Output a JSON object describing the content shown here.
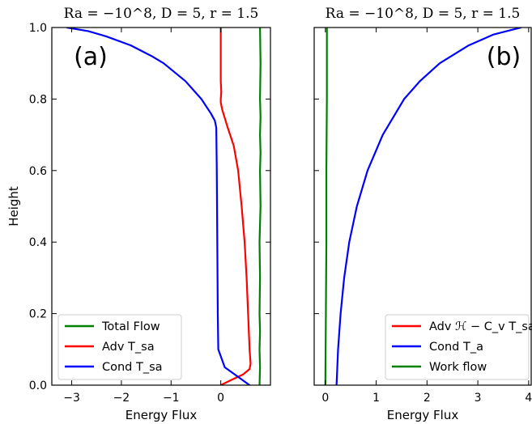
{
  "chart_data": [
    {
      "type": "line",
      "panel_label": "(a)",
      "title": "Ra = −10^8, D = 5, r = 1.5",
      "xlabel": "Energy Flux",
      "ylabel": "Height",
      "xlim": [
        -3.4,
        1.0
      ],
      "ylim": [
        0,
        1.0
      ],
      "xticks": [
        -3,
        -2,
        -1,
        0
      ],
      "yticks": [
        0.0,
        0.2,
        0.4,
        0.6,
        0.8,
        1.0
      ],
      "xtick_labels": [
        "−3",
        "−2",
        "−1",
        "0"
      ],
      "ytick_labels": [
        "0.0",
        "0.2",
        "0.4",
        "0.6",
        "0.8",
        "1.0"
      ],
      "grid": false,
      "legend_position": "lower-left",
      "series": [
        {
          "name": "Total Flow",
          "color": "#008000",
          "points": [
            [
              0.78,
              0.0
            ],
            [
              0.79,
              0.05
            ],
            [
              0.78,
              0.1
            ],
            [
              0.79,
              0.15
            ],
            [
              0.78,
              0.2
            ],
            [
              0.79,
              0.3
            ],
            [
              0.78,
              0.4
            ],
            [
              0.8,
              0.5
            ],
            [
              0.79,
              0.6
            ],
            [
              0.8,
              0.65
            ],
            [
              0.79,
              0.7
            ],
            [
              0.8,
              0.75
            ],
            [
              0.79,
              0.8
            ],
            [
              0.8,
              0.9
            ],
            [
              0.79,
              1.0
            ]
          ]
        },
        {
          "name": "Adv T_sa",
          "color": "#ff0000",
          "points": [
            [
              0.0,
              0.0
            ],
            [
              0.22,
              0.015
            ],
            [
              0.45,
              0.03
            ],
            [
              0.58,
              0.045
            ],
            [
              0.6,
              0.06
            ],
            [
              0.58,
              0.1
            ],
            [
              0.55,
              0.2
            ],
            [
              0.52,
              0.3
            ],
            [
              0.48,
              0.4
            ],
            [
              0.42,
              0.5
            ],
            [
              0.35,
              0.6
            ],
            [
              0.26,
              0.67
            ],
            [
              0.14,
              0.72
            ],
            [
              0.03,
              0.77
            ],
            [
              0.0,
              0.79
            ],
            [
              0.0,
              0.8
            ],
            [
              0.01,
              0.82
            ],
            [
              0.0,
              0.85
            ],
            [
              0.0,
              1.0
            ]
          ]
        },
        {
          "name": "Cond T_sa",
          "color": "#0000ff",
          "points": [
            [
              0.58,
              0.0
            ],
            [
              0.38,
              0.02
            ],
            [
              0.08,
              0.05
            ],
            [
              -0.05,
              0.1
            ],
            [
              -0.06,
              0.2
            ],
            [
              -0.07,
              0.4
            ],
            [
              -0.08,
              0.6
            ],
            [
              -0.09,
              0.72
            ],
            [
              -0.12,
              0.74
            ],
            [
              -0.2,
              0.76
            ],
            [
              -0.39,
              0.8
            ],
            [
              -0.71,
              0.85
            ],
            [
              -1.15,
              0.9
            ],
            [
              -1.39,
              0.92
            ],
            [
              -1.81,
              0.95
            ],
            [
              -2.3,
              0.975
            ],
            [
              -2.67,
              0.99
            ],
            [
              -3.1,
              1.0
            ]
          ]
        }
      ]
    },
    {
      "type": "line",
      "panel_label": "(b)",
      "title": "Ra = −10^8, D = 5, r = 1.5",
      "xlabel": "Energy Flux",
      "ylabel": "",
      "xlim": [
        -0.22,
        4.05
      ],
      "ylim": [
        0,
        1.0
      ],
      "xticks": [
        0,
        1,
        2,
        3,
        4
      ],
      "yticks": [
        0.0,
        0.2,
        0.4,
        0.6,
        0.8,
        1.0
      ],
      "xtick_labels": [
        "0",
        "1",
        "2",
        "3",
        "4"
      ],
      "grid": false,
      "legend_position": "lower-right",
      "series": [
        {
          "name": "Adv ℋ − C_v T_sa",
          "color": "#ff0000",
          "points": []
        },
        {
          "name": "Cond T_a",
          "color": "#0000ff",
          "points": [
            [
              0.22,
              0.0
            ],
            [
              0.25,
              0.1
            ],
            [
              0.3,
              0.2
            ],
            [
              0.37,
              0.3
            ],
            [
              0.47,
              0.4
            ],
            [
              0.62,
              0.5
            ],
            [
              0.83,
              0.6
            ],
            [
              1.13,
              0.7
            ],
            [
              1.55,
              0.8
            ],
            [
              1.86,
              0.85
            ],
            [
              2.25,
              0.9
            ],
            [
              2.82,
              0.95
            ],
            [
              3.3,
              0.98
            ],
            [
              3.85,
              1.0
            ]
          ]
        },
        {
          "name": "Work flow",
          "color": "#008000",
          "points": [
            [
              0.0,
              0.0
            ],
            [
              0.01,
              0.2
            ],
            [
              0.02,
              0.4
            ],
            [
              0.02,
              0.6
            ],
            [
              0.03,
              0.8
            ],
            [
              0.03,
              1.0
            ]
          ]
        }
      ]
    }
  ]
}
